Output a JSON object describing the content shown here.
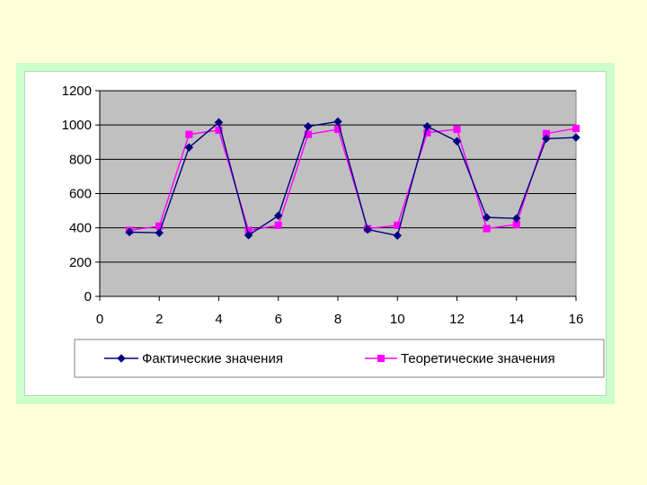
{
  "chart_data": {
    "type": "line",
    "title": "",
    "xlabel": "",
    "ylabel": "",
    "xlim": [
      0,
      16
    ],
    "ylim": [
      0,
      1200
    ],
    "x_ticks": [
      0,
      2,
      4,
      6,
      8,
      10,
      12,
      14,
      16
    ],
    "y_ticks": [
      0,
      200,
      400,
      600,
      800,
      1000,
      1200
    ],
    "grid": "horizontal",
    "plot_background": "#c0c0c0",
    "legend_position": "bottom",
    "series": [
      {
        "name": "Фактические значения",
        "color": "#000080",
        "marker": "diamond",
        "x": [
          1,
          2,
          3,
          4,
          5,
          6,
          7,
          8,
          9,
          10,
          11,
          12,
          13,
          14,
          15,
          16
        ],
        "y": [
          375,
          371,
          869,
          1015,
          357,
          471,
          992,
          1020,
          390,
          355,
          992,
          905,
          461,
          455,
          920,
          927
        ]
      },
      {
        "name": "Теоретические значения",
        "color": "#ff00ff",
        "marker": "square",
        "x": [
          1,
          2,
          3,
          4,
          5,
          6,
          7,
          8,
          9,
          10,
          11,
          12,
          13,
          14,
          15,
          16
        ],
        "y": [
          385,
          410,
          945,
          970,
          385,
          415,
          945,
          975,
          395,
          415,
          955,
          975,
          395,
          420,
          950,
          980
        ]
      }
    ]
  }
}
